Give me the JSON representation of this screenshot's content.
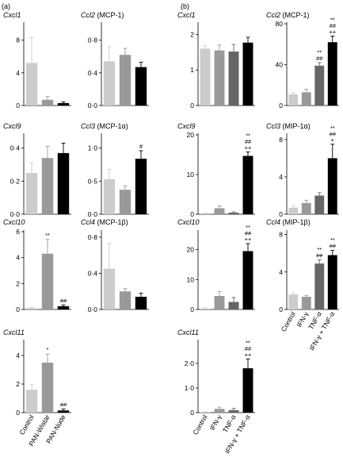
{
  "panels": [
    "(a)",
    "(b)"
  ],
  "colors": {
    "control": "#cccccc",
    "grey_mid": "#999999",
    "grey_dark": "#666666",
    "black": "#000000",
    "axis": "#000000"
  },
  "chart_data": [
    {
      "type": "bar",
      "panel": "(a)",
      "gene": "Cxcl1",
      "protein": "",
      "categories": [
        "Control",
        "PAN-Wistar",
        "PAN-Nude"
      ],
      "values": [
        5.2,
        0.7,
        0.3
      ],
      "errors": [
        3.1,
        0.4,
        0.15
      ],
      "annotations": [
        "",
        "",
        ""
      ],
      "ylim": [
        0,
        10
      ],
      "yticks": [
        {
          "v": 0,
          "label": "0"
        },
        {
          "v": 4,
          "label": "4"
        },
        {
          "v": 8,
          "label": "8"
        }
      ]
    },
    {
      "type": "bar",
      "panel": "(a)",
      "gene": "Ccl2",
      "protein": "(MCP-1)",
      "categories": [
        "Control",
        "PAN-Wistar",
        "PAN-Nude"
      ],
      "values": [
        0.54,
        0.62,
        0.47
      ],
      "errors": [
        0.18,
        0.08,
        0.06
      ],
      "annotations": [
        "",
        "",
        ""
      ],
      "ylim": [
        0,
        1.0
      ],
      "yticks": [
        {
          "v": 0,
          "label": "0·0"
        },
        {
          "v": 0.4,
          "label": "0·4"
        },
        {
          "v": 0.8,
          "label": "0·8"
        }
      ]
    },
    {
      "type": "bar",
      "panel": "(a)",
      "gene": "Cxcl9",
      "protein": "",
      "categories": [
        "Control",
        "PAN-Wistar",
        "PAN-Nude"
      ],
      "values": [
        0.25,
        0.34,
        0.37
      ],
      "errors": [
        0.06,
        0.07,
        0.06
      ],
      "annotations": [
        "",
        "",
        ""
      ],
      "ylim": [
        0,
        0.48
      ],
      "yticks": [
        {
          "v": 0,
          "label": "0·0"
        },
        {
          "v": 0.2,
          "label": "0·2"
        },
        {
          "v": 0.4,
          "label": "0·4"
        }
      ]
    },
    {
      "type": "bar",
      "panel": "(a)",
      "gene": "Ccl3",
      "protein": "(MCP-1α)",
      "categories": [
        "Control",
        "PAN-Wistar",
        "PAN-Nude"
      ],
      "values": [
        0.53,
        0.37,
        0.84
      ],
      "errors": [
        0.15,
        0.06,
        0.12
      ],
      "annotations": [
        "",
        "",
        "#"
      ],
      "ylim": [
        0,
        1.2
      ],
      "yticks": [
        {
          "v": 0,
          "label": "0·0"
        },
        {
          "v": 0.5,
          "label": "0·5"
        },
        {
          "v": 1.0,
          "label": "1·0"
        }
      ]
    },
    {
      "type": "bar",
      "panel": "(a)",
      "gene": "Cxcl10",
      "protein": "",
      "categories": [
        "Control",
        "PAN-Wistar",
        "PAN-Nude"
      ],
      "values": [
        0.1,
        4.3,
        0.25
      ],
      "errors": [
        0.05,
        1.1,
        0.1
      ],
      "annotations": [
        "",
        "**",
        "##"
      ],
      "ylim": [
        0,
        6
      ],
      "yticks": [
        {
          "v": 0,
          "label": "0"
        },
        {
          "v": 2,
          "label": "2"
        },
        {
          "v": 4,
          "label": "4"
        },
        {
          "v": 6,
          "label": "6"
        }
      ]
    },
    {
      "type": "bar",
      "panel": "(a)",
      "gene": "Ccl4",
      "protein": "(MCP-1β)",
      "categories": [
        "Control",
        "PAN-Wistar",
        "PAN-Nude"
      ],
      "values": [
        0.45,
        0.2,
        0.14
      ],
      "errors": [
        0.28,
        0.03,
        0.04
      ],
      "annotations": [
        "",
        "",
        ""
      ],
      "ylim": [
        0,
        0.86
      ],
      "yticks": [
        {
          "v": 0,
          "label": "0·0"
        },
        {
          "v": 0.4,
          "label": "0·4"
        },
        {
          "v": 0.8,
          "label": "0·8"
        }
      ]
    },
    {
      "type": "bar",
      "panel": "(a)",
      "gene": "Cxcl11",
      "protein": "",
      "categories": [
        "Control",
        "PAN-Wistar",
        "PAN-Nude"
      ],
      "values": [
        1.6,
        3.5,
        0.15
      ],
      "errors": [
        0.35,
        0.6,
        0.1
      ],
      "annotations": [
        "",
        "*",
        "##"
      ],
      "ylim": [
        0,
        5
      ],
      "yticks": [
        {
          "v": 0,
          "label": "0"
        },
        {
          "v": 2,
          "label": "2"
        },
        {
          "v": 4,
          "label": "4"
        }
      ]
    },
    {
      "type": "bar",
      "panel": "(b)",
      "gene": "Cxcl1",
      "protein": "",
      "categories": [
        "Control",
        "IFN-γ",
        "TNF-α",
        "IFN-γ + TNF-α"
      ],
      "values": [
        1.6,
        1.55,
        1.52,
        1.77
      ],
      "errors": [
        0.08,
        0.15,
        0.2,
        0.15
      ],
      "annotations": [
        "",
        "",
        "",
        ""
      ],
      "ylim": [
        0,
        2.3
      ],
      "yticks": [
        {
          "v": 0,
          "label": "0"
        },
        {
          "v": 1,
          "label": "1"
        },
        {
          "v": 2,
          "label": "2"
        }
      ]
    },
    {
      "type": "bar",
      "panel": "(b)",
      "gene": "Ccl2",
      "protein": "(MCP-1)",
      "categories": [
        "Control",
        "IFN-γ",
        "TNF-α",
        "IFN-γ + TNF-α"
      ],
      "values": [
        11,
        13,
        39,
        62
      ],
      "errors": [
        1.5,
        3,
        3,
        6
      ],
      "annotations": [
        "",
        "",
        "**\n##",
        "**\n##\n++"
      ],
      "ylim": [
        0,
        80
      ],
      "yticks": [
        {
          "v": 0,
          "label": "0"
        },
        {
          "v": 40,
          "label": "40"
        },
        {
          "v": 80,
          "label": "80"
        }
      ]
    },
    {
      "type": "bar",
      "panel": "(b)",
      "gene": "Cxcl9",
      "protein": "",
      "categories": [
        "Control",
        "IFN-γ",
        "TNF-α",
        "IFN-γ + TNF-α"
      ],
      "values": [
        0.2,
        1.5,
        0.4,
        14.7
      ],
      "errors": [
        0.1,
        0.6,
        0.2,
        1.0
      ],
      "annotations": [
        "",
        "",
        "",
        "**\n##\n++"
      ],
      "ylim": [
        0,
        20
      ],
      "yticks": [
        {
          "v": 0,
          "label": "0"
        },
        {
          "v": 10,
          "label": "10"
        },
        {
          "v": 20,
          "label": "20"
        }
      ]
    },
    {
      "type": "bar",
      "panel": "(b)",
      "gene": "Ccl3",
      "protein": "(MIP-1α)",
      "categories": [
        "Control",
        "IFN-γ",
        "TNF-α",
        "IFN-γ + TNF-α"
      ],
      "values": [
        0.7,
        1.2,
        2.0,
        6.0
      ],
      "errors": [
        0.2,
        0.3,
        0.3,
        1.5
      ],
      "annotations": [
        "",
        "",
        "",
        "**\n##\n+"
      ],
      "ylim": [
        0,
        8.5
      ],
      "yticks": [
        {
          "v": 0,
          "label": "0"
        },
        {
          "v": 4,
          "label": "4"
        },
        {
          "v": 8,
          "label": "8"
        }
      ]
    },
    {
      "type": "bar",
      "panel": "(b)",
      "gene": "Cxcl10",
      "protein": "",
      "categories": [
        "Control",
        "IFN-γ",
        "TNF-α",
        "IFN-γ + TNF-α"
      ],
      "values": [
        0.3,
        4.5,
        2.5,
        19.5
      ],
      "errors": [
        0.2,
        1.5,
        1.5,
        2.5
      ],
      "annotations": [
        "",
        "",
        "",
        "**\n##\n++"
      ],
      "ylim": [
        0,
        26
      ],
      "yticks": [
        {
          "v": 0,
          "label": "0"
        },
        {
          "v": 10,
          "label": "10"
        },
        {
          "v": 20,
          "label": "20"
        }
      ]
    },
    {
      "type": "bar",
      "panel": "(b)",
      "gene": "Ccl4",
      "protein": "(MIP-1β)",
      "categories": [
        "Control",
        "IFN-γ",
        "TNF-α",
        "IFN-γ + TNF-α"
      ],
      "values": [
        1.6,
        1.35,
        4.9,
        5.8
      ],
      "errors": [
        0.15,
        0.15,
        0.4,
        0.5
      ],
      "annotations": [
        "",
        "",
        "**\n##",
        "**\n##"
      ],
      "ylim": [
        0,
        8.3
      ],
      "yticks": [
        {
          "v": 0,
          "label": "0"
        },
        {
          "v": 4,
          "label": "4"
        },
        {
          "v": 8,
          "label": "8"
        }
      ]
    },
    {
      "type": "bar",
      "panel": "(b)",
      "gene": "Cxcl11",
      "protein": "",
      "categories": [
        "Control",
        "IFN-γ",
        "TNF-α",
        "IFN-γ + TNF-α"
      ],
      "values": [
        0.02,
        0.15,
        0.1,
        1.8
      ],
      "errors": [
        0.01,
        0.07,
        0.07,
        0.38
      ],
      "annotations": [
        "",
        "",
        "",
        "**\n##\n++"
      ],
      "ylim": [
        0,
        2.9
      ],
      "yticks": [
        {
          "v": 0,
          "label": "0"
        },
        {
          "v": 1,
          "label": "1·0"
        },
        {
          "v": 2,
          "label": "2·0"
        }
      ]
    }
  ]
}
